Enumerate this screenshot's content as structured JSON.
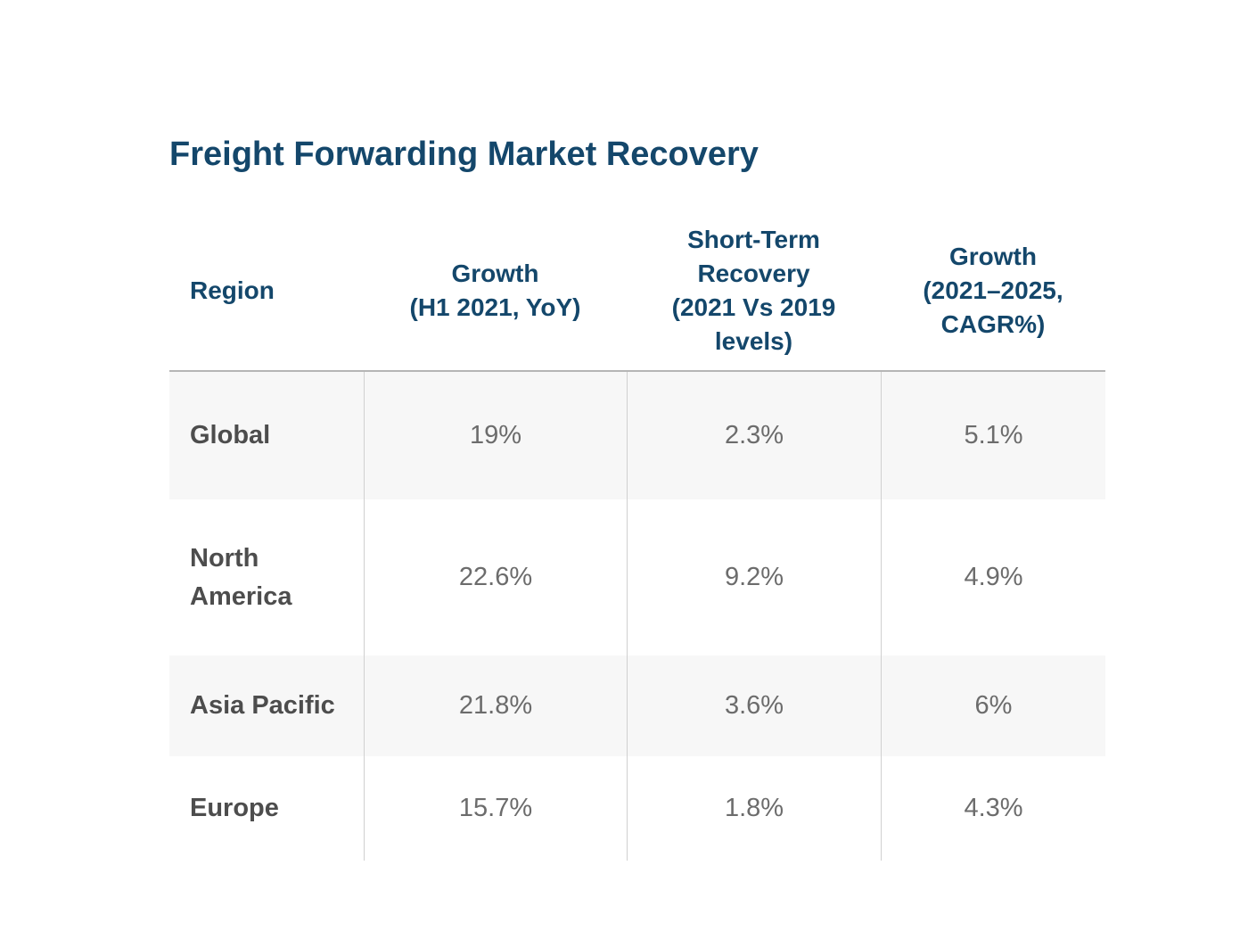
{
  "title": "Freight Forwarding Market Recovery",
  "colors": {
    "title_navy": "#14476b",
    "header_text": "#14476b",
    "row_label": "#4d4d4d",
    "value_text": "#6c6c6c",
    "alt_row_bg": "#f7f7f7",
    "header_rule": "#b5b5b5",
    "column_divider": "#d0d0d0",
    "background": "#ffffff"
  },
  "table": {
    "columns": [
      {
        "label": "Region"
      },
      {
        "label": "Growth\n(H1 2021, YoY)"
      },
      {
        "label": "Short-Term\nRecovery\n(2021 Vs 2019\nlevels)"
      },
      {
        "label": "Growth\n(2021–2025,\nCAGR%)"
      }
    ],
    "rows": [
      {
        "region": "Global",
        "values": [
          "19%",
          "2.3%",
          "5.1%"
        ]
      },
      {
        "region": "North America",
        "values": [
          "22.6%",
          "9.2%",
          "4.9%"
        ]
      },
      {
        "region": "Asia Pacific",
        "values": [
          "21.8%",
          "3.6%",
          "6%"
        ]
      },
      {
        "region": "Europe",
        "values": [
          "15.7%",
          "1.8%",
          "4.3%"
        ]
      }
    ]
  },
  "chart_data": {
    "type": "table",
    "title": "Freight Forwarding Market Recovery",
    "columns": [
      "Region",
      "Growth (H1 2021, YoY)",
      "Short-Term Recovery (2021 Vs 2019 levels)",
      "Growth (2021–2025, CAGR%)"
    ],
    "rows": [
      [
        "Global",
        "19%",
        "2.3%",
        "5.1%"
      ],
      [
        "North America",
        "22.6%",
        "9.2%",
        "4.9%"
      ],
      [
        "Asia Pacific",
        "21.8%",
        "3.6%",
        "6%"
      ],
      [
        "Europe",
        "15.7%",
        "1.8%",
        "4.3%"
      ]
    ],
    "notes": "Percent growth values by region; alternating shaded rows; no gridlines other than header rule and column dividers"
  }
}
